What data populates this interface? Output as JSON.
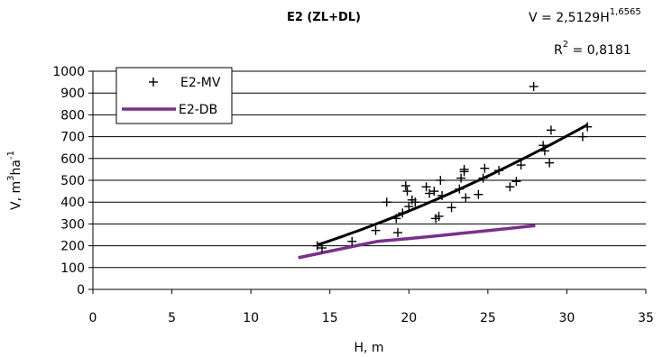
{
  "chart_data": {
    "type": "scatter",
    "title": "E2 (ZL+DL)",
    "equation": {
      "lhs": "V = 2,5129H",
      "exp": "1,6565",
      "r2_label": "R",
      "r2_exp": "2",
      "r2_value": " = 0,8181"
    },
    "xlabel": "H, m",
    "ylabel": {
      "text": "V, m",
      "sup1": "3",
      "mid": "ha",
      "sup2": "-1"
    },
    "xlim": [
      0,
      35
    ],
    "ylim": [
      0,
      1000
    ],
    "xticks": [
      "0",
      "5",
      "10",
      "15",
      "20",
      "25",
      "30",
      "35"
    ],
    "yticks": [
      "0",
      "100",
      "200",
      "300",
      "400",
      "500",
      "600",
      "700",
      "800",
      "900",
      "1000"
    ],
    "grid": "horizontal",
    "legend_position": "top-left",
    "series": [
      {
        "name": "E2-MV",
        "kind": "points",
        "marker": "+",
        "color": "#000000",
        "x": [
          14.2,
          14.5,
          16.4,
          17.9,
          18.6,
          19.2,
          19.3,
          19.6,
          19.8,
          19.9,
          20.0,
          20.2,
          20.4,
          21.1,
          21.3,
          21.6,
          21.7,
          21.9,
          22.0,
          22.1,
          22.7,
          23.2,
          23.3,
          23.5,
          23.5,
          23.6,
          24.4,
          24.7,
          24.8,
          25.7,
          26.4,
          26.8,
          27.1,
          27.9,
          28.5,
          28.6,
          28.9,
          29.0,
          31.0,
          31.3
        ],
        "y": [
          200,
          190,
          220,
          270,
          400,
          325,
          260,
          350,
          475,
          450,
          380,
          410,
          400,
          470,
          440,
          450,
          325,
          335,
          500,
          430,
          375,
          460,
          510,
          550,
          540,
          420,
          435,
          510,
          555,
          545,
          470,
          495,
          570,
          930,
          660,
          635,
          580,
          730,
          700,
          745
        ]
      },
      {
        "name": "",
        "kind": "fit",
        "color": "#000000",
        "coef": 2.5129,
        "exponent": 1.6565,
        "x_range": [
          14.2,
          31.3
        ]
      },
      {
        "name": "E2-DB",
        "kind": "line",
        "color": "#7b2f8c",
        "x": [
          13,
          15,
          17,
          18,
          20,
          22,
          24,
          26,
          28
        ],
        "y": [
          145,
          175,
          205,
          220,
          233,
          247,
          262,
          277,
          292
        ]
      }
    ]
  }
}
